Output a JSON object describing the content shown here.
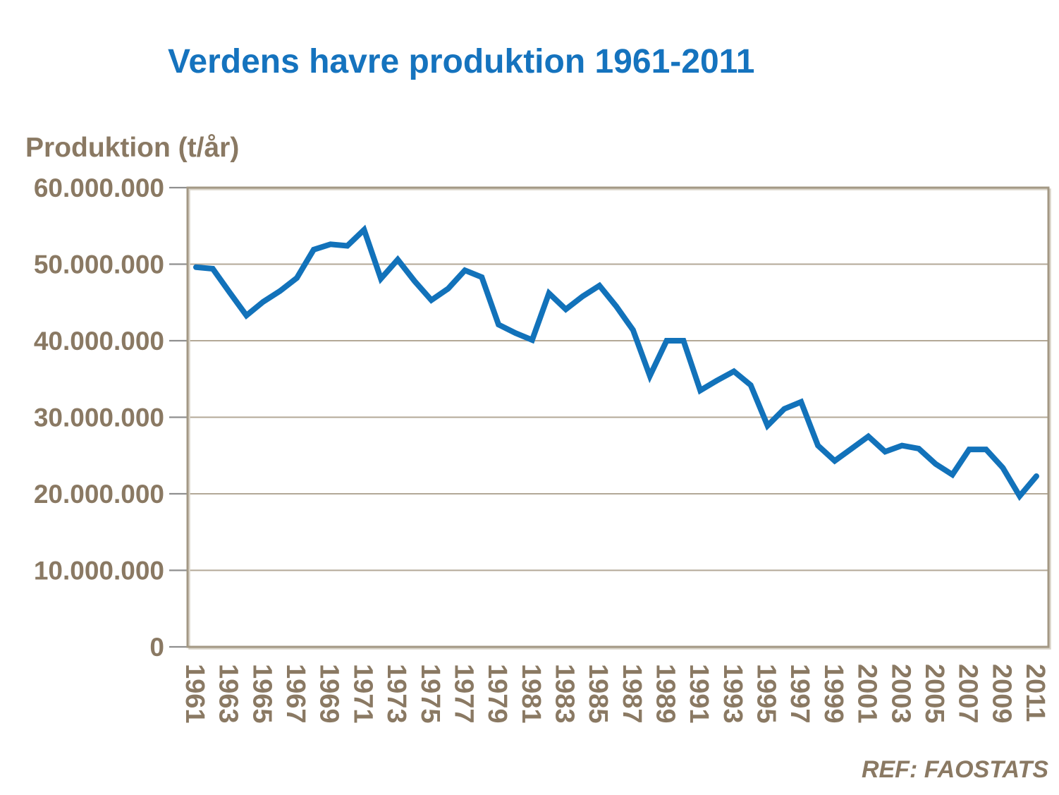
{
  "title": "Verdens havre produktion 1961-2011",
  "y_axis_title": "Produktion (t/år)",
  "reference": "REF: FAOSTATS",
  "colors": {
    "title": "#1573BE",
    "line": "#1272BA",
    "axis_text": "#8A7963",
    "grid": "#B3A897",
    "frame": "#A39884",
    "frame_highlight": "#DAD4C9",
    "tick": "#8F8F8F",
    "background": "#FFFFFF"
  },
  "chart_data": {
    "type": "line",
    "title": "Verdens havre produktion 1961-2011",
    "xlabel": "",
    "ylabel": "Produktion (t/år)",
    "unit": "t/år",
    "legend": "none",
    "grid": "horizontal",
    "annotation": "REF: FAOSTATS",
    "ylim": [
      0,
      60000000
    ],
    "yticks": [
      0,
      10000000,
      20000000,
      30000000,
      40000000,
      50000000,
      60000000
    ],
    "ytick_labels": [
      "0",
      "10.000.000",
      "20.000.000",
      "30.000.000",
      "40.000.000",
      "50.000.000",
      "60.000.000"
    ],
    "xtick_labels": [
      "1961",
      "1963",
      "1965",
      "1967",
      "1969",
      "1971",
      "1973",
      "1975",
      "1977",
      "1979",
      "1981",
      "1983",
      "1985",
      "1987",
      "1989",
      "1991",
      "1993",
      "1995",
      "1997",
      "1999",
      "2001",
      "2003",
      "2005",
      "2007",
      "2009",
      "2011"
    ],
    "x": [
      1961,
      1962,
      1963,
      1964,
      1965,
      1966,
      1967,
      1968,
      1969,
      1970,
      1971,
      1972,
      1973,
      1974,
      1975,
      1976,
      1977,
      1978,
      1979,
      1980,
      1981,
      1982,
      1983,
      1984,
      1985,
      1986,
      1987,
      1988,
      1989,
      1990,
      1991,
      1992,
      1993,
      1994,
      1995,
      1996,
      1997,
      1998,
      1999,
      2000,
      2001,
      2002,
      2003,
      2004,
      2005,
      2006,
      2007,
      2008,
      2009,
      2010,
      2011
    ],
    "values": [
      49600000,
      49400000,
      46300000,
      43300000,
      45100000,
      46500000,
      48200000,
      51900000,
      52600000,
      52400000,
      54500000,
      48100000,
      50600000,
      47800000,
      45300000,
      46800000,
      49200000,
      48300000,
      42100000,
      41000000,
      40100000,
      46200000,
      44100000,
      45800000,
      47200000,
      44500000,
      41400000,
      35400000,
      40000000,
      40000000,
      33500000,
      34800000,
      36000000,
      34200000,
      28900000,
      31100000,
      32000000,
      26300000,
      24300000,
      25900000,
      27500000,
      25500000,
      26300000,
      25900000,
      23900000,
      22500000,
      25800000,
      25800000,
      23400000,
      19700000,
      22300000
    ]
  }
}
